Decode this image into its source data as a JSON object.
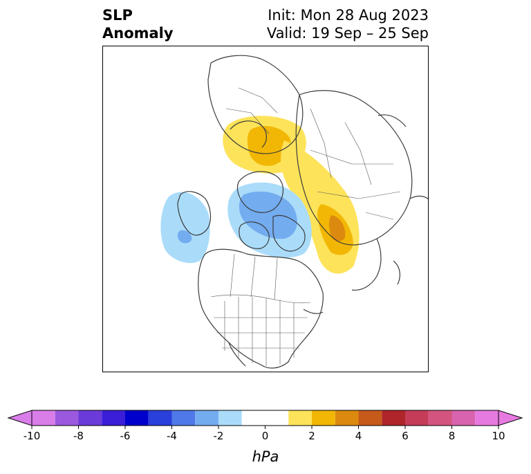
{
  "title": {
    "left_line1": "SLP",
    "left_line2": "Anomaly",
    "right_line1": "Init: Mon 28 Aug 2023",
    "right_line2": "Valid: 19 Sep – 25 Sep"
  },
  "map": {
    "projection": "north-polar-stereographic",
    "region": "North America / Arctic / Eurasia",
    "anomaly_features": [
      {
        "kind": "positive",
        "location": "Scandinavia to Northern Russia",
        "max_hpa": 3
      },
      {
        "kind": "positive",
        "location": "Eastern Siberia",
        "max_hpa": 5
      },
      {
        "kind": "negative",
        "location": "Arctic Ocean north of Canada",
        "min_hpa": -3
      },
      {
        "kind": "negative",
        "location": "Gulf of Alaska / North Pacific",
        "min_hpa": -3
      }
    ]
  },
  "colorbar": {
    "unit_label": "hPa",
    "extend": "both",
    "levels": [
      -10,
      -9,
      -8,
      -7,
      -6,
      -5,
      -4,
      -3,
      -2,
      -1,
      1,
      2,
      3,
      4,
      5,
      6,
      7,
      8,
      9,
      10
    ],
    "tick_labels": [
      "-10",
      "-8",
      "-6",
      "-4",
      "-2",
      "0",
      "2",
      "4",
      "6",
      "8",
      "10"
    ],
    "colors": [
      "#d97de9",
      "#9b59e0",
      "#6b3bd9",
      "#3a1ed8",
      "#0000cc",
      "#2a3fdc",
      "#4f79e8",
      "#74acf0",
      "#aadcfa",
      "#ffffff",
      "#fde35a",
      "#f2b705",
      "#dc8a0f",
      "#c65a1a",
      "#b0252a",
      "#c43c58",
      "#d3557f",
      "#d963ae",
      "#e77ae0"
    ]
  }
}
